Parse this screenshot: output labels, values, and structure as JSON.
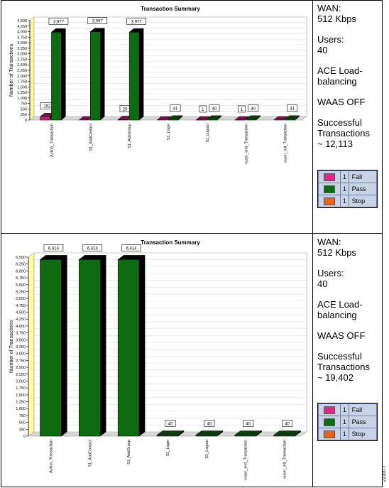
{
  "panels": [
    {
      "info": {
        "wan_label": "WAN:",
        "wan_value": "512 Kbps",
        "users_label": "Users:",
        "users_value": "40",
        "ace_line1": "ACE Load-",
        "ace_line2": "balancing",
        "waas": "WAAS OFF",
        "success_line1": "Successful",
        "success_line2": "Transactions",
        "success_line3": "~ 12,113"
      },
      "legend": [
        {
          "name": "Fail",
          "num": "1",
          "color": "#e0288a"
        },
        {
          "name": "Pass",
          "num": "1",
          "color": "#0e6b12"
        },
        {
          "name": "Stop",
          "num": "1",
          "color": "#f06018"
        }
      ]
    },
    {
      "info": {
        "wan_label": "WAN:",
        "wan_value": "512 Kbps",
        "users_label": "Users:",
        "users_value": "40",
        "ace_line1": "ACE Load-",
        "ace_line2": "balancing",
        "waas": "WAAS OFF",
        "success_line1": "Successful",
        "success_line2": "Transactions",
        "success_line3": "~ 19,402"
      },
      "legend": [
        {
          "name": "Fail",
          "num": "1",
          "color": "#e0288a"
        },
        {
          "name": "Pass",
          "num": "1",
          "color": "#0e6b12"
        },
        {
          "name": "Stop",
          "num": "1",
          "color": "#f06018"
        }
      ]
    }
  ],
  "chart_data": [
    {
      "type": "bar",
      "title": "Transaction Summary",
      "ylabel": "Number of Transactions",
      "xlabel": "",
      "ylim": [
        0,
        4500
      ],
      "yticks": [
        0,
        250,
        500,
        750,
        1000,
        1250,
        1500,
        1750,
        2000,
        2250,
        2500,
        2750,
        3000,
        3250,
        3500,
        3750,
        4000,
        4250,
        4500
      ],
      "ytick_labels": [
        "0",
        "250",
        "500",
        "750",
        "1,000",
        "1,250",
        "1,500",
        "1,750",
        "2,000",
        "2,250",
        "2,500",
        "2,750",
        "3,000",
        "3,250",
        "3,500",
        "3,750",
        "4,000",
        "4,250",
        "4,500"
      ],
      "categories": [
        "Action_Transaction",
        "S1_AddContact",
        "S1_AddGroup",
        "S1_Login",
        "S1_Logout",
        "vuser_end_Transaction",
        "vuser_init_Transaction"
      ],
      "series": [
        {
          "name": "Fail",
          "color": "#c0207a",
          "values": [
            152,
            0,
            20,
            0,
            1,
            1,
            0
          ],
          "labels": [
            "152",
            "",
            "20",
            "",
            "1",
            "1",
            ""
          ]
        },
        {
          "name": "Pass",
          "color": "#0e6b12",
          "values": [
            3977,
            3997,
            3977,
            41,
            40,
            40,
            41
          ],
          "labels": [
            "3,977",
            "3,997",
            "3,977",
            "41",
            "40",
            "40",
            "41"
          ]
        }
      ],
      "grid": true
    },
    {
      "type": "bar",
      "title": "Transaction Summary",
      "ylabel": "Number of Transactions",
      "xlabel": "",
      "ylim": [
        0,
        6500
      ],
      "yticks": [
        0,
        250,
        500,
        750,
        1000,
        1250,
        1500,
        1750,
        2000,
        2250,
        2500,
        2750,
        3000,
        3250,
        3500,
        3750,
        4000,
        4250,
        4500,
        4750,
        5000,
        5250,
        5500,
        5750,
        6000,
        6250,
        6500
      ],
      "ytick_labels": [
        "0",
        "250",
        "500",
        "750",
        "1,000",
        "1,250",
        "1,500",
        "1,750",
        "2,000",
        "2,250",
        "2,500",
        "2,750",
        "3,000",
        "3,250",
        "3,500",
        "3,750",
        "4,000",
        "4,250",
        "4,500",
        "4,750",
        "5,000",
        "5,250",
        "5,500",
        "5,750",
        "6,000",
        "6,250",
        "6,500"
      ],
      "categories": [
        "Action_Transaction",
        "S1_AddContact",
        "S1_AddGroup",
        "S1_Login",
        "S1_Logout",
        "vuser_end_Transaction",
        "vuser_init_Transaction"
      ],
      "series": [
        {
          "name": "Pass",
          "color": "#0e6b12",
          "values": [
            6414,
            6414,
            6414,
            40,
            40,
            40,
            40
          ],
          "labels": [
            "6,414",
            "6,414",
            "6,414",
            "40",
            "40",
            "40",
            "40"
          ]
        }
      ],
      "grid": true
    }
  ],
  "stamp": "223077"
}
